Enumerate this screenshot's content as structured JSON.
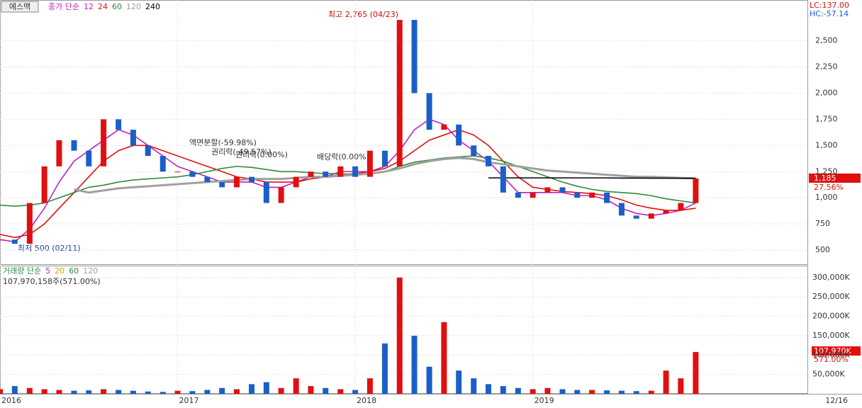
{
  "chart_data": {
    "type": "candlestick",
    "stock_name": "에스맥",
    "price_legend_prefix": "종가 단순",
    "x": [
      2016,
      2016.083,
      2016.167,
      2016.25,
      2016.333,
      2016.417,
      2016.5,
      2016.583,
      2016.667,
      2016.75,
      2016.833,
      2016.917,
      2017,
      2017.083,
      2017.167,
      2017.25,
      2017.333,
      2017.417,
      2017.5,
      2017.583,
      2017.667,
      2017.75,
      2017.833,
      2017.917,
      2018,
      2018.083,
      2018.167,
      2018.25,
      2018.333,
      2018.417,
      2018.5,
      2018.583,
      2018.667,
      2018.75,
      2018.833,
      2018.917,
      2019,
      2019.083,
      2019.167,
      2019.25,
      2019.333,
      2019.417,
      2019.5,
      2019.583,
      2019.667,
      2019.75,
      2019.833,
      2019.917
    ],
    "close": [
      600,
      560,
      950,
      1300,
      1550,
      1450,
      1300,
      1750,
      1650,
      1500,
      1400,
      1250,
      1250,
      1200,
      1150,
      1100,
      1200,
      1150,
      950,
      1100,
      1200,
      1250,
      1200,
      1300,
      1200,
      1450,
      1300,
      2700,
      2000,
      1650,
      1700,
      1500,
      1400,
      1300,
      1050,
      1000,
      1050,
      1100,
      1050,
      1000,
      1050,
      950,
      830,
      800,
      850,
      880,
      950,
      1185
    ],
    "up_color": "#e01010",
    "down_color": "#1a5fc8",
    "series": [
      {
        "name": "12",
        "color": "#c020c0",
        "values": [
          600,
          580,
          700,
          900,
          1150,
          1350,
          1450,
          1550,
          1650,
          1600,
          1500,
          1400,
          1300,
          1250,
          1200,
          1150,
          1150,
          1150,
          1100,
          1100,
          1150,
          1200,
          1200,
          1250,
          1250,
          1250,
          1300,
          1450,
          1650,
          1750,
          1700,
          1550,
          1450,
          1350,
          1200,
          1050,
          1050,
          1050,
          1050,
          1020,
          1020,
          980,
          900,
          850,
          830,
          850,
          880,
          950
        ]
      },
      {
        "name": "24",
        "color": "#e01010",
        "values": [
          650,
          620,
          650,
          750,
          900,
          1050,
          1200,
          1350,
          1450,
          1500,
          1500,
          1450,
          1400,
          1350,
          1300,
          1250,
          1200,
          1180,
          1150,
          1150,
          1150,
          1180,
          1200,
          1220,
          1230,
          1250,
          1280,
          1350,
          1450,
          1550,
          1600,
          1650,
          1600,
          1500,
          1350,
          1200,
          1100,
          1080,
          1060,
          1050,
          1040,
          1020,
          980,
          930,
          900,
          880,
          880,
          900
        ]
      },
      {
        "name": "60",
        "color": "#2e8b3e",
        "values": [
          930,
          920,
          930,
          950,
          1000,
          1050,
          1100,
          1120,
          1150,
          1170,
          1180,
          1190,
          1200,
          1220,
          1250,
          1280,
          1300,
          1290,
          1270,
          1250,
          1250,
          1240,
          1230,
          1230,
          1220,
          1230,
          1250,
          1300,
          1340,
          1360,
          1380,
          1390,
          1400,
          1380,
          1350,
          1300,
          1250,
          1200,
          1150,
          1110,
          1080,
          1060,
          1050,
          1040,
          1020,
          990,
          970,
          950
        ]
      },
      {
        "name": "120",
        "color": "#a0a0a0",
        "values": [
          null,
          null,
          null,
          null,
          null,
          1080,
          1050,
          1070,
          1090,
          1100,
          1110,
          1120,
          1130,
          1140,
          1150,
          1160,
          1170,
          1180,
          1180,
          1180,
          1190,
          1200,
          1200,
          1210,
          1220,
          1230,
          1250,
          1280,
          1320,
          1350,
          1370,
          1380,
          1370,
          1340,
          1320,
          1300,
          1280,
          1260,
          1250,
          1240,
          1230,
          1220,
          1210,
          1200,
          1200,
          1195,
          1190,
          1185
        ]
      },
      {
        "name": "240",
        "color": "#000000",
        "values": [
          null,
          null,
          null,
          null,
          null,
          null,
          null,
          null,
          null,
          null,
          null,
          null,
          null,
          null,
          null,
          null,
          null,
          null,
          null,
          null,
          null,
          null,
          null,
          null,
          null,
          null,
          null,
          null,
          null,
          null,
          null,
          null,
          null,
          1190,
          1190,
          1190,
          1190,
          1190,
          1190,
          1190,
          1190,
          1190,
          1188,
          1188,
          1187,
          1187,
          1186,
          1186
        ]
      }
    ],
    "xlim": [
      2016,
      2020.55
    ],
    "xticks": [
      2016,
      2017,
      2018,
      2019
    ],
    "x_end_label": "12/16",
    "ylim": [
      365,
      2890
    ],
    "yticks": [
      500,
      750,
      {
        "value": 1000,
        "label": "1,000"
      },
      {
        "value": 1250,
        "label": "1,250"
      },
      {
        "value": 1500,
        "label": "1,500"
      },
      {
        "value": 1750,
        "label": "1,750"
      },
      {
        "value": 2000,
        "label": "2,000"
      },
      {
        "value": 2250,
        "label": "2,250"
      },
      {
        "value": 2500,
        "label": "2,500"
      }
    ],
    "annotations": {
      "high": "최고 2,765 (04/23)",
      "low": "최저 500 (02/11)",
      "split": "액면분할(-59.98%)",
      "rights": "권리락(-49.57%)",
      "rights2": "권리락(0.00%)",
      "dividend": "배당락(0.00%)",
      "lc": "LC:137.00",
      "hc": "HC:-57.14",
      "last_price": "1,185",
      "last_change": "27.56%"
    },
    "volume": {
      "legend_prefix": "거래량 단순",
      "legend_items": [
        {
          "label": "5",
          "color": "#c020c0"
        },
        {
          "label": "20",
          "color": "#e0a000"
        },
        {
          "label": "60",
          "color": "#2e8b3e"
        },
        {
          "label": "120",
          "color": "#a0a0a0"
        }
      ],
      "summary": "107,970,158주(571.00%)",
      "last_label": "107,970K",
      "last_change": "571.00%",
      "values": [
        12000,
        20000,
        15000,
        12000,
        10000,
        8000,
        9000,
        12000,
        10000,
        8000,
        6000,
        5000,
        8000,
        7000,
        10000,
        15000,
        12000,
        25000,
        30000,
        15000,
        40000,
        20000,
        15000,
        12000,
        10000,
        40000,
        130000,
        300000,
        150000,
        70000,
        185000,
        60000,
        40000,
        25000,
        20000,
        15000,
        12000,
        15000,
        12000,
        10000,
        10000,
        9000,
        8000,
        7000,
        8000,
        60000,
        40000,
        107970
      ],
      "ylim": [
        0,
        329000
      ],
      "yticks": [
        {
          "value": 50000,
          "label": "50,000K"
        },
        {
          "value": 100000,
          "label": "100,000K"
        },
        {
          "value": 150000,
          "label": "150,000K"
        },
        {
          "value": 200000,
          "label": "200,000K"
        },
        {
          "value": 250000,
          "label": "250,000K"
        },
        {
          "value": 300000,
          "label": "300,000K"
        }
      ]
    }
  }
}
